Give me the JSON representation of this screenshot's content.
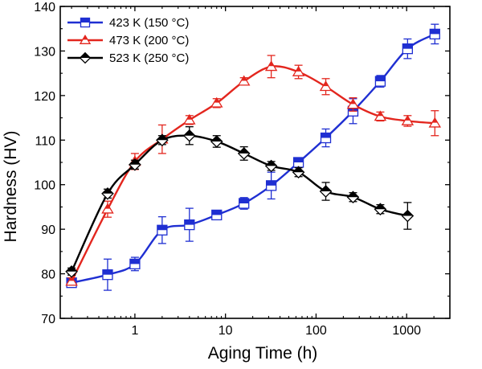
{
  "chart_data": {
    "type": "line",
    "xlabel": "Aging Time (h)",
    "ylabel": "Hardness (HV)",
    "xscale": "log",
    "xlim": [
      0.15,
      3000
    ],
    "ylim": [
      70,
      140
    ],
    "grid": false,
    "legend_position": "top-left",
    "x_ticks": [
      1,
      10,
      100,
      1000
    ],
    "x_tick_labels": [
      "1",
      "10",
      "100",
      "1000"
    ],
    "y_ticks": [
      70,
      80,
      90,
      100,
      110,
      120,
      130,
      140
    ],
    "y_tick_labels": [
      "70",
      "80",
      "90",
      "100",
      "110",
      "120",
      "130",
      "140"
    ],
    "series": [
      {
        "name": "423 K (150 °C)",
        "color": "#1f2fd2",
        "marker": "square",
        "points": [
          {
            "x": 0.2,
            "y": 78.0,
            "err": 1.0
          },
          {
            "x": 0.5,
            "y": 79.8,
            "err": 3.5
          },
          {
            "x": 1,
            "y": 82.2,
            "err": 1.5
          },
          {
            "x": 2,
            "y": 89.8,
            "err": 3.0
          },
          {
            "x": 4,
            "y": 91.0,
            "err": 3.7
          },
          {
            "x": 8,
            "y": 93.2,
            "err": 0.8
          },
          {
            "x": 16,
            "y": 95.8,
            "err": 1.3
          },
          {
            "x": 32,
            "y": 99.8,
            "err": 3.0
          },
          {
            "x": 64,
            "y": 105.0,
            "err": 1.0
          },
          {
            "x": 128,
            "y": 110.5,
            "err": 2.0
          },
          {
            "x": 256,
            "y": 116.5,
            "err": 2.8
          },
          {
            "x": 512,
            "y": 123.2,
            "err": 1.3
          },
          {
            "x": 1024,
            "y": 130.5,
            "err": 2.2
          },
          {
            "x": 2048,
            "y": 133.8,
            "err": 2.2
          }
        ]
      },
      {
        "name": "473 K (200 °C)",
        "color": "#e3261e",
        "marker": "triangle",
        "points": [
          {
            "x": 0.2,
            "y": 78.3,
            "err": 0.8
          },
          {
            "x": 0.5,
            "y": 94.5,
            "err": 1.8
          },
          {
            "x": 1,
            "y": 105.2,
            "err": 1.8
          },
          {
            "x": 2,
            "y": 110.2,
            "err": 3.2
          },
          {
            "x": 4,
            "y": 114.5,
            "err": 1.0
          },
          {
            "x": 8,
            "y": 118.3,
            "err": 1.0
          },
          {
            "x": 16,
            "y": 123.2,
            "err": 0.8
          },
          {
            "x": 32,
            "y": 126.5,
            "err": 2.5
          },
          {
            "x": 64,
            "y": 125.3,
            "err": 1.5
          },
          {
            "x": 128,
            "y": 122.0,
            "err": 1.8
          },
          {
            "x": 256,
            "y": 118.0,
            "err": 1.5
          },
          {
            "x": 512,
            "y": 115.3,
            "err": 1.0
          },
          {
            "x": 1024,
            "y": 114.3,
            "err": 1.2
          },
          {
            "x": 2048,
            "y": 113.8,
            "err": 2.8
          }
        ]
      },
      {
        "name": "523 K (250 °C)",
        "color": "#000000",
        "marker": "diamond",
        "points": [
          {
            "x": 0.2,
            "y": 80.5,
            "err": 0.8
          },
          {
            "x": 0.5,
            "y": 98.0,
            "err": 1.0
          },
          {
            "x": 1,
            "y": 104.5,
            "err": 1.0
          },
          {
            "x": 2,
            "y": 110.0,
            "err": 1.0
          },
          {
            "x": 4,
            "y": 111.0,
            "err": 2.0
          },
          {
            "x": 8,
            "y": 109.7,
            "err": 1.3
          },
          {
            "x": 16,
            "y": 107.0,
            "err": 1.5
          },
          {
            "x": 32,
            "y": 104.2,
            "err": 1.0
          },
          {
            "x": 64,
            "y": 102.8,
            "err": 1.0
          },
          {
            "x": 128,
            "y": 98.5,
            "err": 2.0
          },
          {
            "x": 256,
            "y": 97.2,
            "err": 1.0
          },
          {
            "x": 512,
            "y": 94.5,
            "err": 1.0
          },
          {
            "x": 1024,
            "y": 93.0,
            "err": 3.0
          }
        ]
      }
    ]
  }
}
